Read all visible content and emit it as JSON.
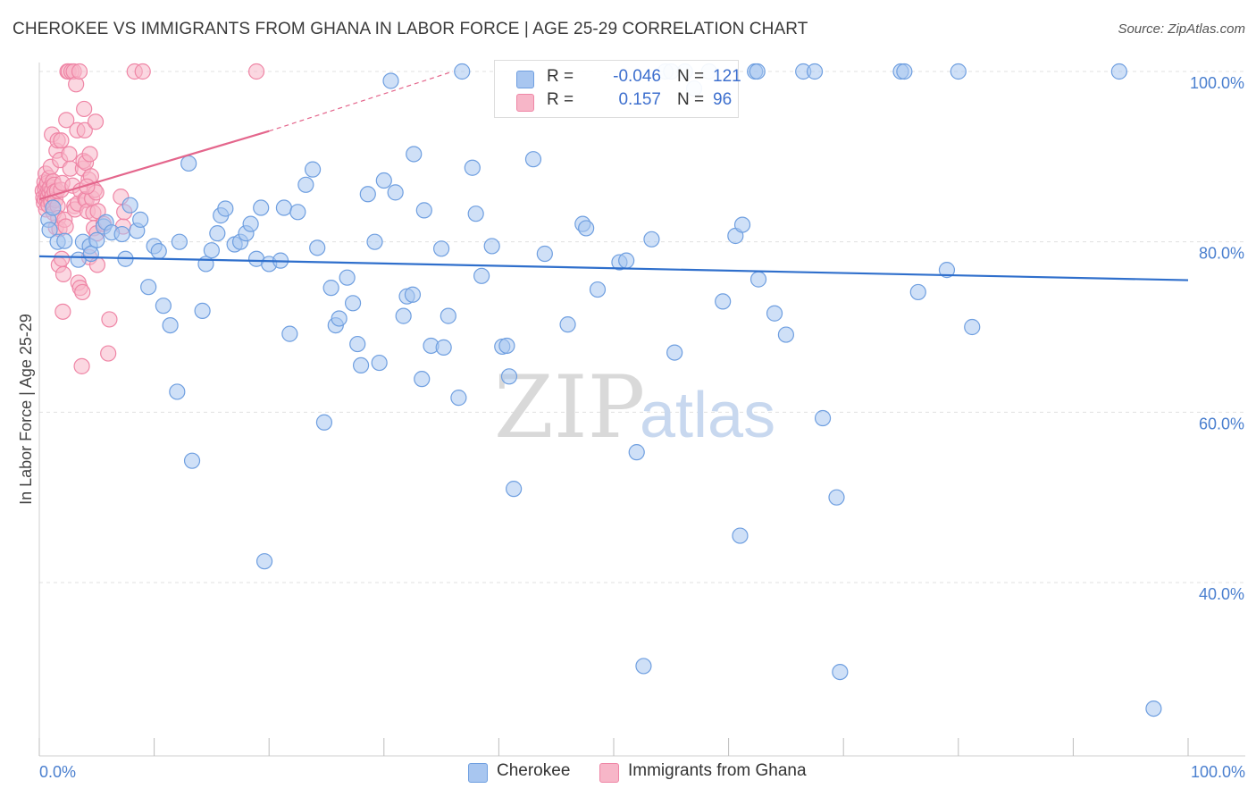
{
  "title": "CHEROKEE VS IMMIGRANTS FROM GHANA IN LABOR FORCE | AGE 25-29 CORRELATION CHART",
  "source": "Source: ZipAtlas.com",
  "watermark": {
    "zip": "ZIP",
    "atlas": "atlas"
  },
  "legend": {
    "r_label": "R =",
    "n_label": "N =",
    "rows": [
      {
        "name": "Cherokee",
        "r": "-0.046",
        "n": "121"
      },
      {
        "name": "Immigrants from Ghana",
        "r": "0.157",
        "n": "96"
      }
    ]
  },
  "colors": {
    "cherokee_fill": "#a8c6f0",
    "cherokee_stroke": "#6f9fe0",
    "cherokee_line": "#2f6fcc",
    "ghana_fill": "#f7b6c8",
    "ghana_stroke": "#ef86a6",
    "ghana_line": "#e4668c",
    "tick_text": "#4a7fcf",
    "grid": "#e0e0e0"
  },
  "chart_data": {
    "type": "scatter",
    "title": "CHEROKEE VS IMMIGRANTS FROM GHANA IN LABOR FORCE | AGE 25-29 CORRELATION CHART",
    "xlabel": "",
    "ylabel": "In Labor Force | Age 25-29",
    "xlim": [
      0,
      100
    ],
    "ylim": [
      23,
      103
    ],
    "x_tick_labels": [
      "0.0%",
      "100.0%"
    ],
    "y_ticks": [
      40,
      60,
      80,
      100
    ],
    "y_tick_labels": [
      "40.0%",
      "60.0%",
      "80.0%",
      "100.0%"
    ],
    "grid": true,
    "legend_position": "top-center",
    "series": [
      {
        "name": "Cherokee",
        "r": -0.046,
        "n": 121,
        "trend": {
          "x": [
            0,
            100
          ],
          "y": [
            78.3,
            75.5
          ]
        },
        "points": [
          [
            0.8,
            82.6
          ],
          [
            0.9,
            81.4
          ],
          [
            1.2,
            84.0
          ],
          [
            1.6,
            80.0
          ],
          [
            2.2,
            80.1
          ],
          [
            3.4,
            77.9
          ],
          [
            3.8,
            80.0
          ],
          [
            4.4,
            79.5
          ],
          [
            4.5,
            78.6
          ],
          [
            5.0,
            80.2
          ],
          [
            5.6,
            81.8
          ],
          [
            5.8,
            82.3
          ],
          [
            6.3,
            81.1
          ],
          [
            7.2,
            80.9
          ],
          [
            7.5,
            78.0
          ],
          [
            7.9,
            84.3
          ],
          [
            8.5,
            81.3
          ],
          [
            8.8,
            82.6
          ],
          [
            9.5,
            74.7
          ],
          [
            10.0,
            79.5
          ],
          [
            10.4,
            78.9
          ],
          [
            10.8,
            72.5
          ],
          [
            11.4,
            70.2
          ],
          [
            12.0,
            62.4
          ],
          [
            12.2,
            80.0
          ],
          [
            13.0,
            89.2
          ],
          [
            13.3,
            54.3
          ],
          [
            14.2,
            71.9
          ],
          [
            14.5,
            77.4
          ],
          [
            15.0,
            79.0
          ],
          [
            15.5,
            81.0
          ],
          [
            15.8,
            83.1
          ],
          [
            16.2,
            83.9
          ],
          [
            17.0,
            79.7
          ],
          [
            17.5,
            80.0
          ],
          [
            18.0,
            81.0
          ],
          [
            18.4,
            82.1
          ],
          [
            18.9,
            78.0
          ],
          [
            19.3,
            84.0
          ],
          [
            19.6,
            42.5
          ],
          [
            20.0,
            77.4
          ],
          [
            21.0,
            77.8
          ],
          [
            21.3,
            84.0
          ],
          [
            21.8,
            69.2
          ],
          [
            22.5,
            83.5
          ],
          [
            23.2,
            86.7
          ],
          [
            23.8,
            88.5
          ],
          [
            24.2,
            79.3
          ],
          [
            24.8,
            58.8
          ],
          [
            25.4,
            74.6
          ],
          [
            25.8,
            70.2
          ],
          [
            26.1,
            71.0
          ],
          [
            26.8,
            75.8
          ],
          [
            27.3,
            72.8
          ],
          [
            27.7,
            68.0
          ],
          [
            28.0,
            65.5
          ],
          [
            28.6,
            85.6
          ],
          [
            29.2,
            80.0
          ],
          [
            29.6,
            65.8
          ],
          [
            30.0,
            87.2
          ],
          [
            31.0,
            85.8
          ],
          [
            31.7,
            71.3
          ],
          [
            32.0,
            73.6
          ],
          [
            32.5,
            73.8
          ],
          [
            32.6,
            90.3
          ],
          [
            33.3,
            63.9
          ],
          [
            33.5,
            83.7
          ],
          [
            34.1,
            67.8
          ],
          [
            35.0,
            79.2
          ],
          [
            35.2,
            67.6
          ],
          [
            35.6,
            71.3
          ],
          [
            36.5,
            61.7
          ],
          [
            36.8,
            100.0
          ],
          [
            37.7,
            88.7
          ],
          [
            38.0,
            83.3
          ],
          [
            38.5,
            76.0
          ],
          [
            39.4,
            79.5
          ],
          [
            40.3,
            67.7
          ],
          [
            40.7,
            67.8
          ],
          [
            40.9,
            64.2
          ],
          [
            41.3,
            51.0
          ],
          [
            43.0,
            89.7
          ],
          [
            44.0,
            78.6
          ],
          [
            46.0,
            70.3
          ],
          [
            47.3,
            82.1
          ],
          [
            47.6,
            81.6
          ],
          [
            48.6,
            74.4
          ],
          [
            50.5,
            77.6
          ],
          [
            51.1,
            77.8
          ],
          [
            52.0,
            55.3
          ],
          [
            52.6,
            30.2
          ],
          [
            53.3,
            80.3
          ],
          [
            54.5,
            100.0
          ],
          [
            55.0,
            100.0
          ],
          [
            55.3,
            67.0
          ],
          [
            56.2,
            100.0
          ],
          [
            57.0,
            98.0
          ],
          [
            58.3,
            100.0
          ],
          [
            59.5,
            73.0
          ],
          [
            60.6,
            80.7
          ],
          [
            61.0,
            45.5
          ],
          [
            61.2,
            82.0
          ],
          [
            62.3,
            100.0
          ],
          [
            62.5,
            100.0
          ],
          [
            62.6,
            75.6
          ],
          [
            64.0,
            71.6
          ],
          [
            65.0,
            69.1
          ],
          [
            66.5,
            100.0
          ],
          [
            67.5,
            100.0
          ],
          [
            68.2,
            59.3
          ],
          [
            69.4,
            50.0
          ],
          [
            69.7,
            29.5
          ],
          [
            75.0,
            100.0
          ],
          [
            75.3,
            100.0
          ],
          [
            76.5,
            74.1
          ],
          [
            79.0,
            76.7
          ],
          [
            80.0,
            100.0
          ],
          [
            81.2,
            70.0
          ],
          [
            94.0,
            100.0
          ],
          [
            97.0,
            25.2
          ],
          [
            30.6,
            98.9
          ]
        ]
      },
      {
        "name": "Immigrants from Ghana",
        "r": 0.157,
        "n": 96,
        "trend": {
          "x": [
            0,
            20
          ],
          "y": [
            85.0,
            93.0
          ]
        },
        "trend_dashed": {
          "x": [
            20,
            36
          ],
          "y": [
            93.0,
            100.0
          ]
        },
        "points": [
          [
            0.3,
            86.0
          ],
          [
            0.35,
            85.2
          ],
          [
            0.4,
            84.6
          ],
          [
            0.45,
            87.0
          ],
          [
            0.5,
            86.2
          ],
          [
            0.5,
            85.0
          ],
          [
            0.55,
            88.0
          ],
          [
            0.6,
            83.8
          ],
          [
            0.6,
            86.6
          ],
          [
            0.65,
            85.6
          ],
          [
            0.7,
            84.9
          ],
          [
            0.7,
            86.9
          ],
          [
            0.75,
            85.3
          ],
          [
            0.8,
            86.1
          ],
          [
            0.8,
            84.3
          ],
          [
            0.85,
            87.5
          ],
          [
            0.9,
            85.8
          ],
          [
            0.95,
            86.4
          ],
          [
            1.0,
            85.0
          ],
          [
            1.0,
            88.8
          ],
          [
            1.05,
            84.6
          ],
          [
            1.1,
            86.0
          ],
          [
            1.1,
            92.6
          ],
          [
            1.15,
            85.4
          ],
          [
            1.2,
            87.1
          ],
          [
            1.25,
            83.4
          ],
          [
            1.3,
            86.7
          ],
          [
            1.35,
            85.9
          ],
          [
            1.4,
            84.9
          ],
          [
            1.45,
            81.7
          ],
          [
            1.5,
            90.7
          ],
          [
            1.55,
            86.0
          ],
          [
            1.6,
            84.2
          ],
          [
            1.6,
            91.9
          ],
          [
            1.65,
            82.8
          ],
          [
            1.7,
            77.3
          ],
          [
            1.75,
            81.5
          ],
          [
            1.8,
            89.6
          ],
          [
            1.9,
            86.1
          ],
          [
            1.9,
            91.9
          ],
          [
            1.95,
            78.0
          ],
          [
            2.0,
            86.9
          ],
          [
            2.05,
            71.8
          ],
          [
            2.1,
            76.2
          ],
          [
            2.2,
            82.6
          ],
          [
            2.3,
            81.8
          ],
          [
            2.35,
            94.3
          ],
          [
            2.45,
            100.0
          ],
          [
            2.55,
            100.0
          ],
          [
            2.6,
            90.3
          ],
          [
            2.7,
            88.6
          ],
          [
            2.8,
            100.0
          ],
          [
            2.9,
            86.6
          ],
          [
            3.0,
            100.0
          ],
          [
            3.05,
            84.2
          ],
          [
            3.1,
            83.8
          ],
          [
            3.2,
            98.5
          ],
          [
            3.3,
            93.1
          ],
          [
            3.35,
            84.5
          ],
          [
            3.4,
            75.2
          ],
          [
            3.5,
            100.0
          ],
          [
            3.55,
            74.6
          ],
          [
            3.6,
            86.0
          ],
          [
            3.7,
            65.4
          ],
          [
            3.75,
            74.1
          ],
          [
            3.8,
            88.6
          ],
          [
            3.85,
            89.5
          ],
          [
            3.9,
            95.6
          ],
          [
            3.95,
            93.1
          ],
          [
            4.0,
            85.0
          ],
          [
            4.05,
            89.3
          ],
          [
            4.1,
            84.9
          ],
          [
            4.2,
            83.6
          ],
          [
            4.3,
            87.3
          ],
          [
            4.35,
            78.2
          ],
          [
            4.4,
            90.3
          ],
          [
            4.5,
            87.7
          ],
          [
            4.6,
            85.1
          ],
          [
            4.7,
            83.4
          ],
          [
            4.75,
            81.6
          ],
          [
            4.8,
            86.1
          ],
          [
            4.9,
            94.1
          ],
          [
            5.0,
            81.0
          ],
          [
            5.05,
            77.3
          ],
          [
            5.1,
            83.6
          ],
          [
            6.1,
            70.9
          ],
          [
            6.0,
            66.9
          ],
          [
            7.1,
            85.3
          ],
          [
            7.3,
            81.8
          ],
          [
            8.3,
            100.0
          ],
          [
            9.0,
            100.0
          ],
          [
            18.9,
            100.0
          ],
          [
            7.4,
            83.5
          ],
          [
            5.6,
            82.1
          ],
          [
            4.95,
            85.8
          ],
          [
            4.15,
            86.5
          ]
        ]
      }
    ]
  }
}
